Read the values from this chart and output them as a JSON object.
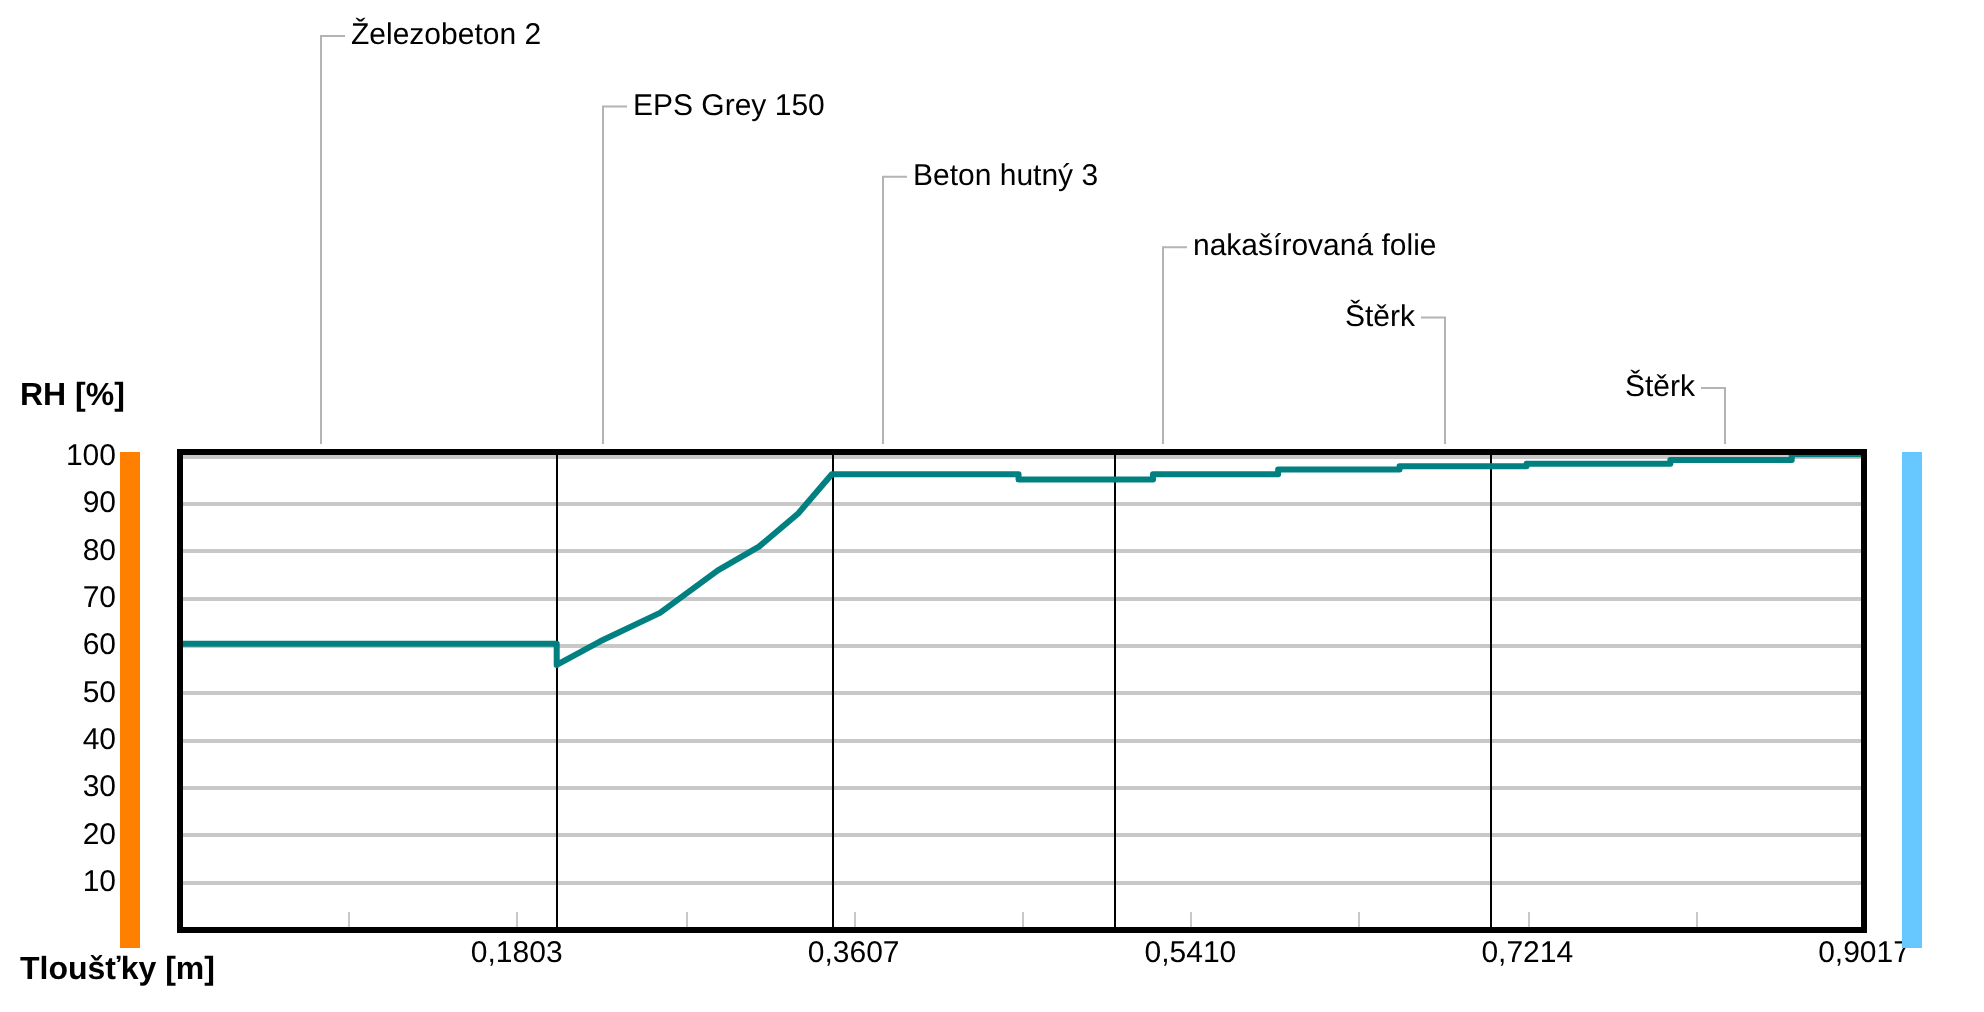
{
  "chart_data": {
    "type": "line",
    "xlabel": "Tloušťky [m]",
    "ylabel": "RH [%]",
    "xlim": [
      0,
      0.9017
    ],
    "ylim": [
      0,
      101
    ],
    "xticks": [
      {
        "value": 0.0902,
        "label": null
      },
      {
        "value": 0.1803,
        "label": "0,1803"
      },
      {
        "value": 0.2705,
        "label": null
      },
      {
        "value": 0.3607,
        "label": "0,3607"
      },
      {
        "value": 0.4508,
        "label": null
      },
      {
        "value": 0.541,
        "label": "0,5410"
      },
      {
        "value": 0.6312,
        "label": null
      },
      {
        "value": 0.7214,
        "label": "0,7214"
      },
      {
        "value": 0.8115,
        "label": null
      },
      {
        "value": 0.9017,
        "label": "0,9017"
      }
    ],
    "yticks": [
      10,
      20,
      30,
      40,
      50,
      60,
      70,
      80,
      90,
      100
    ],
    "grid": "y",
    "legend": false,
    "marker": "none",
    "line_style": "solid",
    "series": [
      {
        "color": "#008080",
        "x": [
          0,
          0.2017,
          0.2017,
          0.225,
          0.257,
          0.288,
          0.31,
          0.331,
          0.349,
          0.449,
          0.449,
          0.521,
          0.521,
          0.588,
          0.588,
          0.653,
          0.653,
          0.721,
          0.721,
          0.798,
          0.798,
          0.863,
          0.863,
          0.9017
        ],
        "values": [
          60.5,
          60.5,
          56,
          61,
          67,
          76,
          81,
          88,
          96.3,
          96.3,
          95.2,
          95.2,
          96.3,
          96.3,
          97.3,
          97.3,
          98,
          98,
          98.5,
          98.5,
          99.3,
          99.3,
          100.5,
          100.5
        ]
      }
    ],
    "ref_lines": [
      {
        "axis": "x",
        "value": 0.2017,
        "color": "#000000"
      },
      {
        "axis": "x",
        "value": 0.349,
        "color": "#000000"
      },
      {
        "axis": "x",
        "value": 0.5006,
        "color": "#000000"
      },
      {
        "axis": "x",
        "value": 0.701,
        "color": "#000000"
      }
    ],
    "annotations": [
      "Železobeton 2",
      "EPS Grey 150",
      "Beton hutný 3",
      "nakašírovaná folie",
      "Štěrk",
      "Štěrk"
    ]
  }
}
